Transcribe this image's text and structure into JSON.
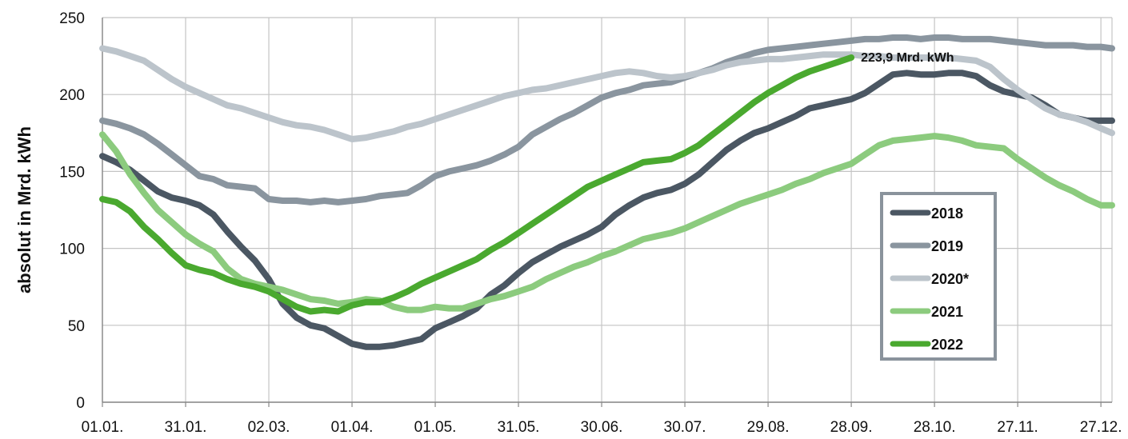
{
  "chart_data": {
    "type": "line",
    "ylabel": "absolut in Mrd. kWh",
    "xlabel": "",
    "ylim": [
      0,
      250
    ],
    "y_ticks": [
      0,
      50,
      100,
      150,
      200,
      250
    ],
    "x_ticks": [
      "01.01.",
      "31.01.",
      "02.03.",
      "01.04.",
      "01.05.",
      "31.05.",
      "30.06.",
      "30.07.",
      "29.08.",
      "28.09.",
      "28.10.",
      "27.11.",
      "27.12."
    ],
    "x_tick_days": [
      0,
      30,
      60,
      90,
      120,
      150,
      180,
      210,
      240,
      270,
      300,
      330,
      360
    ],
    "xlim_days": [
      0,
      364
    ],
    "grid": true,
    "legend_position": "right",
    "annotation": {
      "text": "223,9 Mrd. kWh",
      "series": "2022",
      "day": 270,
      "value": 223.9
    },
    "series": [
      {
        "name": "2018",
        "color": "#4b5763",
        "x": [
          0,
          5,
          10,
          15,
          20,
          25,
          30,
          35,
          40,
          45,
          50,
          55,
          60,
          65,
          70,
          75,
          80,
          85,
          90,
          95,
          100,
          105,
          110,
          115,
          120,
          125,
          130,
          135,
          140,
          145,
          150,
          155,
          160,
          165,
          170,
          175,
          180,
          185,
          190,
          195,
          200,
          205,
          210,
          215,
          220,
          225,
          230,
          235,
          240,
          245,
          250,
          255,
          260,
          265,
          270,
          275,
          280,
          285,
          290,
          295,
          300,
          305,
          310,
          315,
          320,
          325,
          330,
          335,
          340,
          345,
          350,
          355,
          360,
          364
        ],
        "values": [
          160,
          156,
          151,
          144,
          137,
          133,
          131,
          128,
          122,
          111,
          101,
          92,
          80,
          64,
          55,
          50,
          48,
          43,
          38,
          36,
          36,
          37,
          39,
          41,
          48,
          52,
          56,
          61,
          70,
          76,
          84,
          91,
          96,
          101,
          105,
          109,
          114,
          122,
          128,
          133,
          136,
          138,
          142,
          148,
          156,
          164,
          170,
          175,
          178,
          182,
          186,
          191,
          193,
          195,
          197,
          201,
          207,
          213,
          214,
          213,
          213,
          214,
          214,
          212,
          206,
          202,
          200,
          198,
          193,
          187,
          185,
          183,
          183,
          183
        ]
      },
      {
        "name": "2019",
        "color": "#8a959f",
        "x": [
          0,
          5,
          10,
          15,
          20,
          25,
          30,
          35,
          40,
          45,
          50,
          55,
          60,
          65,
          70,
          75,
          80,
          85,
          90,
          95,
          100,
          105,
          110,
          115,
          120,
          125,
          130,
          135,
          140,
          145,
          150,
          155,
          160,
          165,
          170,
          175,
          180,
          185,
          190,
          195,
          200,
          205,
          210,
          215,
          220,
          225,
          230,
          235,
          240,
          245,
          250,
          255,
          260,
          265,
          270,
          275,
          280,
          285,
          290,
          295,
          300,
          305,
          310,
          315,
          320,
          325,
          330,
          335,
          340,
          345,
          350,
          355,
          360,
          364
        ],
        "values": [
          183,
          181,
          178,
          174,
          168,
          161,
          154,
          147,
          145,
          141,
          140,
          139,
          132,
          131,
          131,
          130,
          131,
          130,
          131,
          132,
          134,
          135,
          136,
          141,
          147,
          150,
          152,
          154,
          157,
          161,
          166,
          174,
          179,
          184,
          188,
          193,
          198,
          201,
          203,
          206,
          207,
          208,
          211,
          214,
          217,
          221,
          224,
          227,
          229,
          230,
          231,
          232,
          233,
          234,
          235,
          236,
          236,
          237,
          237,
          236,
          237,
          237,
          236,
          236,
          236,
          235,
          234,
          233,
          232,
          232,
          232,
          231,
          231,
          230
        ]
      },
      {
        "name": "2020*",
        "color": "#bcc4cb",
        "x": [
          0,
          5,
          10,
          15,
          20,
          25,
          30,
          35,
          40,
          45,
          50,
          55,
          60,
          65,
          70,
          75,
          80,
          85,
          90,
          95,
          100,
          105,
          110,
          115,
          120,
          125,
          130,
          135,
          140,
          145,
          150,
          155,
          160,
          165,
          170,
          175,
          180,
          185,
          190,
          195,
          200,
          205,
          210,
          215,
          220,
          225,
          230,
          235,
          240,
          245,
          250,
          255,
          260,
          265,
          270,
          275,
          280,
          285,
          290,
          295,
          300,
          305,
          310,
          315,
          320,
          325,
          330,
          335,
          340,
          345,
          350,
          355,
          360,
          364
        ],
        "values": [
          230,
          228,
          225,
          222,
          216,
          210,
          205,
          201,
          197,
          193,
          191,
          188,
          185,
          182,
          180,
          179,
          177,
          174,
          171,
          172,
          174,
          176,
          179,
          181,
          184,
          187,
          190,
          193,
          196,
          199,
          201,
          203,
          204,
          206,
          208,
          210,
          212,
          214,
          215,
          214,
          212,
          211,
          212,
          214,
          216,
          219,
          221,
          222,
          223,
          223,
          224,
          225,
          226,
          226,
          226,
          225,
          225,
          224,
          224,
          224,
          224,
          224,
          223,
          222,
          218,
          210,
          203,
          197,
          191,
          187,
          185,
          182,
          178,
          175
        ]
      },
      {
        "name": "2021",
        "color": "#8ccb7e",
        "x": [
          0,
          5,
          10,
          15,
          20,
          25,
          30,
          35,
          40,
          45,
          50,
          55,
          60,
          65,
          70,
          75,
          80,
          85,
          90,
          95,
          100,
          105,
          110,
          115,
          120,
          125,
          130,
          135,
          140,
          145,
          150,
          155,
          160,
          165,
          170,
          175,
          180,
          185,
          190,
          195,
          200,
          205,
          210,
          215,
          220,
          225,
          230,
          235,
          240,
          245,
          250,
          255,
          260,
          265,
          270,
          275,
          280,
          285,
          290,
          295,
          300,
          305,
          310,
          315,
          320,
          325,
          330,
          335,
          340,
          345,
          350,
          355,
          360,
          364
        ],
        "values": [
          174,
          163,
          148,
          136,
          125,
          117,
          109,
          103,
          98,
          87,
          80,
          77,
          75,
          73,
          70,
          67,
          66,
          64,
          65,
          67,
          66,
          62,
          60,
          60,
          62,
          61,
          61,
          64,
          67,
          69,
          72,
          75,
          80,
          84,
          88,
          91,
          95,
          98,
          102,
          106,
          108,
          110,
          113,
          117,
          121,
          125,
          129,
          132,
          135,
          138,
          142,
          145,
          149,
          152,
          155,
          161,
          167,
          170,
          171,
          172,
          173,
          172,
          170,
          167,
          166,
          165,
          158,
          152,
          146,
          141,
          137,
          132,
          128,
          128
        ]
      },
      {
        "name": "2022",
        "color": "#4aa92f",
        "x": [
          0,
          5,
          10,
          15,
          20,
          25,
          30,
          35,
          40,
          45,
          50,
          55,
          60,
          65,
          70,
          75,
          80,
          85,
          90,
          95,
          100,
          105,
          110,
          115,
          120,
          125,
          130,
          135,
          140,
          145,
          150,
          155,
          160,
          165,
          170,
          175,
          180,
          185,
          190,
          195,
          200,
          205,
          210,
          215,
          220,
          225,
          230,
          235,
          240,
          245,
          250,
          255,
          260,
          265,
          270
        ],
        "values": [
          132,
          130,
          124,
          114,
          106,
          97,
          89,
          86,
          84,
          80,
          77,
          75,
          72,
          67,
          62,
          59,
          60,
          59,
          63,
          65,
          65,
          68,
          72,
          77,
          81,
          85,
          89,
          93,
          99,
          104,
          110,
          116,
          122,
          128,
          134,
          140,
          144,
          148,
          152,
          156,
          157,
          158,
          162,
          167,
          174,
          181,
          188,
          195,
          201,
          206,
          211,
          215,
          218,
          221,
          224
        ]
      }
    ]
  }
}
